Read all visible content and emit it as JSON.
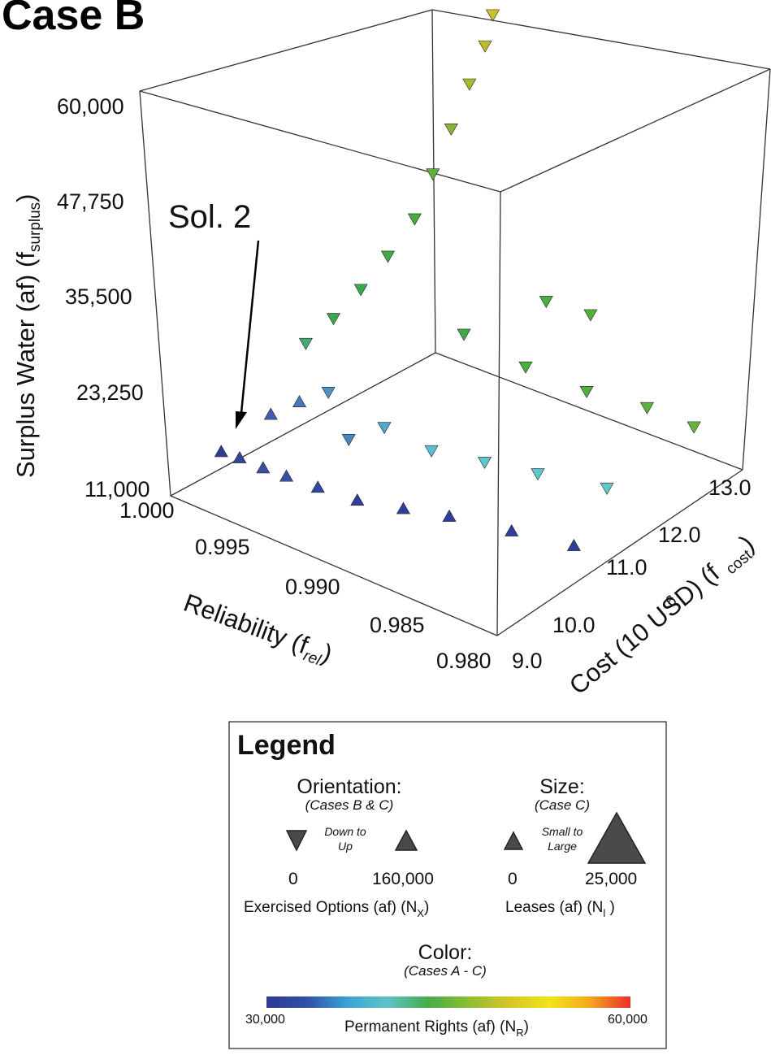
{
  "chart_data": {
    "type": "scatter",
    "title": "Case B",
    "annotation": "Sol. 2",
    "axes": {
      "z": {
        "label": "Surplus Water (af) (f",
        "label_sub": "surplus",
        "label_end": ")",
        "range": [
          11000,
          60000
        ],
        "ticks": [
          "60,000",
          "47,750",
          "35,500",
          "23,250",
          "11,000"
        ]
      },
      "reliability": {
        "label": "Reliability (f",
        "label_sub": "rel",
        "label_end": ")",
        "range": [
          0.98,
          1.0
        ],
        "ticks": [
          "1.000",
          "0.995",
          "0.990",
          "0.985",
          "0.980"
        ]
      },
      "cost": {
        "label": "Cost (10 USD) (f",
        "label_sup": "6",
        "label_sub": "cost",
        "label_end": ")",
        "range": [
          9.0,
          13.0
        ],
        "ticks": [
          "9.0",
          "10.0",
          "11.0",
          "12.0",
          "13.0"
        ]
      }
    },
    "series": [
      {
        "marker": "arrowhead",
        "points": [
          {
            "cost": 9.6,
            "rel": 0.9992,
            "surplus": 14500,
            "color": "#2e3c96",
            "up": true
          },
          {
            "cost": 9.7,
            "rel": 0.9985,
            "surplus": 13900,
            "color": "#33449c",
            "up": true
          },
          {
            "cost": 9.8,
            "rel": 0.9975,
            "surplus": 13100,
            "color": "#3a4ea4",
            "up": true
          },
          {
            "cost": 9.9,
            "rel": 0.9965,
            "surplus": 12500,
            "color": "#3a4ea4",
            "up": true
          },
          {
            "cost": 10.0,
            "rel": 0.995,
            "surplus": 12000,
            "color": "#32479f",
            "up": true
          },
          {
            "cost": 10.1,
            "rel": 0.993,
            "surplus": 11700,
            "color": "#2f3f99",
            "up": true
          },
          {
            "cost": 10.3,
            "rel": 0.991,
            "surplus": 11500,
            "color": "#2f3f99",
            "up": true
          },
          {
            "cost": 10.5,
            "rel": 0.989,
            "surplus": 11400,
            "color": "#2f3f99",
            "up": true
          },
          {
            "cost": 10.7,
            "rel": 0.986,
            "surplus": 11300,
            "color": "#2f3f99",
            "up": true
          },
          {
            "cost": 10.9,
            "rel": 0.983,
            "surplus": 11200,
            "color": "#2f3f99",
            "up": true
          },
          {
            "cost": 10.2,
            "rel": 0.9985,
            "surplus": 17000,
            "color": "#3c5eac",
            "up": true
          },
          {
            "cost": 10.4,
            "rel": 0.9975,
            "surplus": 18500,
            "color": "#4778b8",
            "up": true
          },
          {
            "cost": 10.6,
            "rel": 0.9965,
            "surplus": 19500,
            "color": "#4f90c4",
            "up": false
          },
          {
            "cost": 10.5,
            "rel": 0.995,
            "surplus": 15500,
            "color": "#4b86c0",
            "up": false
          },
          {
            "cost": 10.8,
            "rel": 0.994,
            "surplus": 16500,
            "color": "#53a8c9",
            "up": false
          },
          {
            "cost": 11.0,
            "rel": 0.992,
            "surplus": 14500,
            "color": "#5abfce",
            "up": false
          },
          {
            "cost": 11.3,
            "rel": 0.99,
            "surplus": 13500,
            "color": "#5dc6cf",
            "up": false
          },
          {
            "cost": 11.6,
            "rel": 0.988,
            "surplus": 12500,
            "color": "#5dc6cf",
            "up": false
          },
          {
            "cost": 11.9,
            "rel": 0.985,
            "surplus": 12000,
            "color": "#64c7c5",
            "up": false
          },
          {
            "cost": 10.9,
            "rel": 0.999,
            "surplus": 22000,
            "color": "#45aa74",
            "up": false
          },
          {
            "cost": 11.1,
            "rel": 0.998,
            "surplus": 25000,
            "color": "#3ba84f",
            "up": false
          },
          {
            "cost": 11.3,
            "rel": 0.997,
            "surplus": 28500,
            "color": "#3aa84b",
            "up": false
          },
          {
            "cost": 11.5,
            "rel": 0.996,
            "surplus": 32500,
            "color": "#3fab45",
            "up": false
          },
          {
            "cost": 11.7,
            "rel": 0.995,
            "surplus": 37000,
            "color": "#48ad3f",
            "up": false
          },
          {
            "cost": 11.9,
            "rel": 0.9945,
            "surplus": 42000,
            "color": "#5fb03a",
            "up": false
          },
          {
            "cost": 12.1,
            "rel": 0.994,
            "surplus": 47000,
            "color": "#86b733",
            "up": false
          },
          {
            "cost": 12.3,
            "rel": 0.9935,
            "surplus": 52000,
            "color": "#a7bb2f",
            "up": false
          },
          {
            "cost": 12.5,
            "rel": 0.9932,
            "surplus": 56000,
            "color": "#bcbd2d",
            "up": false
          },
          {
            "cost": 12.6,
            "rel": 0.993,
            "surplus": 59500,
            "color": "#cbc22b",
            "up": false
          },
          {
            "cost": 11.6,
            "rel": 0.992,
            "surplus": 26000,
            "color": "#3fab45",
            "up": false
          },
          {
            "cost": 12.0,
            "rel": 0.99,
            "surplus": 22000,
            "color": "#4aae3f",
            "up": false
          },
          {
            "cost": 12.4,
            "rel": 0.988,
            "surplus": 19000,
            "color": "#54b03c",
            "up": false
          },
          {
            "cost": 12.8,
            "rel": 0.986,
            "surplus": 17000,
            "color": "#5cb23a",
            "up": false
          },
          {
            "cost": 13.0,
            "rel": 0.984,
            "surplus": 15500,
            "color": "#63b438",
            "up": false
          },
          {
            "cost": 12.6,
            "rel": 0.991,
            "surplus": 26500,
            "color": "#4aae3f",
            "up": false
          },
          {
            "cost": 13.0,
            "rel": 0.99,
            "surplus": 24000,
            "color": "#52b03c",
            "up": false
          }
        ]
      }
    ]
  },
  "legend": {
    "title": "Legend",
    "orientation": {
      "heading": "Orientation:",
      "cases": "(Cases B & C)",
      "desc_1": "Down to",
      "desc_2": "Up",
      "min": "0",
      "max": "160,000",
      "label": "Exercised Options (af) (N",
      "label_sub": "X",
      "label_end": ")"
    },
    "size": {
      "heading": "Size:",
      "cases": "(Case C)",
      "desc_1": "Small to",
      "desc_2": "Large",
      "min": "0",
      "max": "25,000",
      "label": "Leases (af) (N",
      "label_sub": "l",
      "label_end": " )"
    },
    "color": {
      "heading": "Color:",
      "cases": "(Cases A - C)",
      "min": "30,000",
      "max": "60,000",
      "label": "Permanent Rights (af) (N",
      "label_sub": "R",
      "label_end": ")",
      "colormap": [
        "#2e3a93",
        "#2f4fa6",
        "#3aa3d6",
        "#5ec3c6",
        "#46ad4c",
        "#8dbd33",
        "#d7c42a",
        "#f1e51a",
        "#f6a51d",
        "#ea2e2a"
      ]
    }
  }
}
